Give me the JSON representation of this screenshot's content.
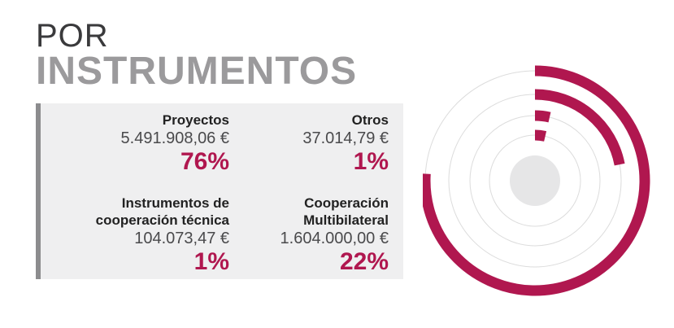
{
  "header": {
    "line1": "POR",
    "line2": "INSTRUMENTOS"
  },
  "items": [
    {
      "label_lines": [
        "Proyectos"
      ],
      "amount": "5.491.908,06 €",
      "percent": "76%"
    },
    {
      "label_lines": [
        "Otros"
      ],
      "amount": "37.014,79 €",
      "percent": "1%"
    },
    {
      "label_lines": [
        "Instrumentos de",
        "cooperación técnica"
      ],
      "amount": "104.073,47 €",
      "percent": "1%"
    },
    {
      "label_lines": [
        "Cooperación",
        "Multibilateral"
      ],
      "amount": "1.604.000,00 €",
      "percent": "22%"
    }
  ],
  "chart_data": {
    "type": "radial_bar",
    "categories": [
      "Proyectos",
      "Cooperación Multibilateral",
      "Otros",
      "Instrumentos de cooperación técnica"
    ],
    "values": [
      76,
      22,
      1,
      1
    ],
    "unit": "%",
    "colors": {
      "bar": "#b0174f",
      "track": "#dcdcdc",
      "center": "#e6e6e7"
    }
  }
}
